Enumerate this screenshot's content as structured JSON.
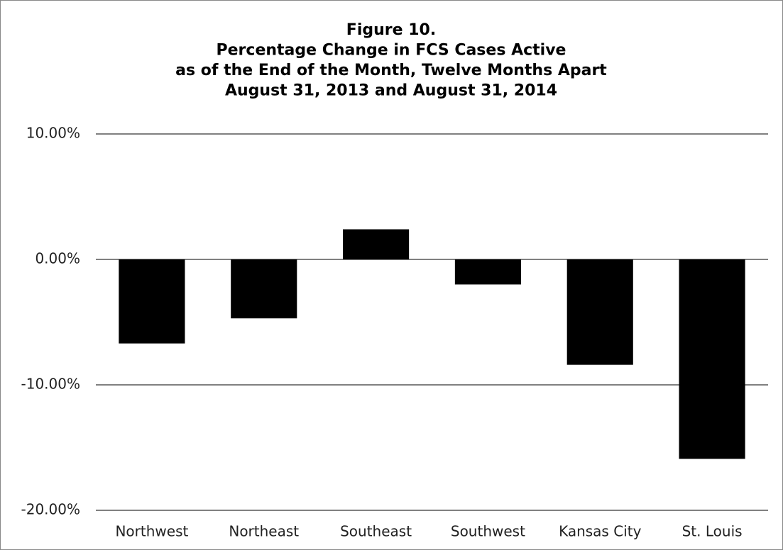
{
  "chart_data": {
    "type": "bar",
    "title": [
      "Figure 10.",
      "Percentage Change in FCS Cases Active",
      "as of the End of the Month, Twelve Months Apart",
      "August 31, 2013 and August 31, 2014"
    ],
    "categories": [
      "Northwest",
      "Northeast",
      "Southeast",
      "Southwest",
      "Kansas City",
      "St. Louis"
    ],
    "values": [
      -6.7,
      -4.7,
      2.4,
      -2.0,
      -8.4,
      -15.9
    ],
    "color": "#000000",
    "ylim": [
      -20,
      10
    ],
    "yticks": [
      {
        "value": -20,
        "label": "-20.00%"
      },
      {
        "value": -10,
        "label": "-10.00%"
      },
      {
        "value": 0,
        "label": "0.00%"
      },
      {
        "value": 10,
        "label": "10.00%"
      }
    ],
    "grid": true
  }
}
